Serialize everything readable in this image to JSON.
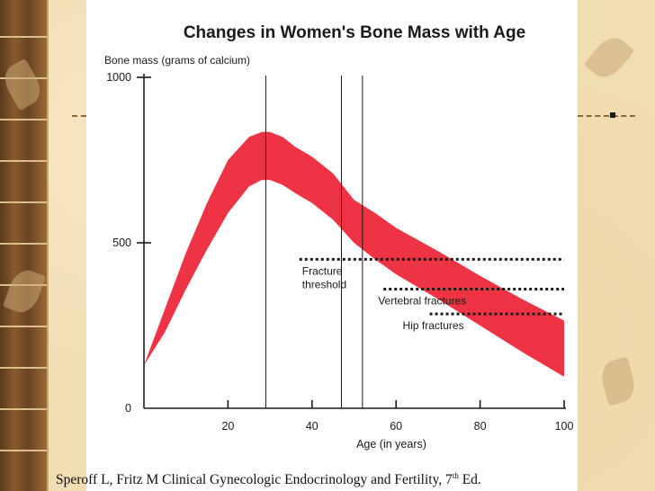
{
  "theme": {
    "band_color": "#ee3344",
    "axis_color": "#1a1a1a",
    "threshold_color": "#1a1a1a"
  },
  "chart_data": {
    "type": "area",
    "title": "Changes in Women's Bone Mass with Age",
    "ylabel": "Bone mass (grams of calcium)",
    "xlabel": "Age (in years)",
    "xlim": [
      0,
      100
    ],
    "ylim": [
      0,
      1000
    ],
    "x_ticks": [
      20,
      40,
      60,
      80,
      100
    ],
    "y_ticks": [
      0,
      500,
      1000
    ],
    "y_tick_labels": [
      "0",
      "500",
      "1000"
    ],
    "x_tick_labels": [
      "20",
      "40",
      "60",
      "80",
      "100"
    ],
    "band": {
      "x": [
        0,
        5,
        10,
        15,
        20,
        25,
        28,
        30,
        33,
        36,
        40,
        45,
        50,
        55,
        60,
        70,
        80,
        90,
        100
      ],
      "upper": [
        130,
        300,
        470,
        620,
        750,
        820,
        835,
        835,
        820,
        790,
        760,
        710,
        630,
        590,
        545,
        475,
        400,
        330,
        265
      ],
      "lower": [
        130,
        230,
        360,
        480,
        590,
        670,
        690,
        690,
        675,
        650,
        620,
        570,
        500,
        450,
        405,
        330,
        250,
        170,
        95
      ]
    },
    "vertical_lines": [
      29,
      47,
      52
    ],
    "thresholds": [
      {
        "label": "Fracture threshold",
        "label_lines": [
          "Fracture",
          "threshold"
        ],
        "y": 450,
        "x_start": 37,
        "x_end": 100
      },
      {
        "label": "Vertebral fractures",
        "label_lines": [
          "Vertebral fractures"
        ],
        "y": 360,
        "x_start": 57,
        "x_end": 100
      },
      {
        "label": "Hip fractures",
        "label_lines": [
          "Hip fractures"
        ],
        "y": 285,
        "x_start": 68,
        "x_end": 100
      }
    ]
  },
  "citation": {
    "text": "Speroff L, Fritz M Clinical Gynecologic Endocrinology and Fertility, 7",
    "sup": "th",
    "tail": " Ed."
  }
}
